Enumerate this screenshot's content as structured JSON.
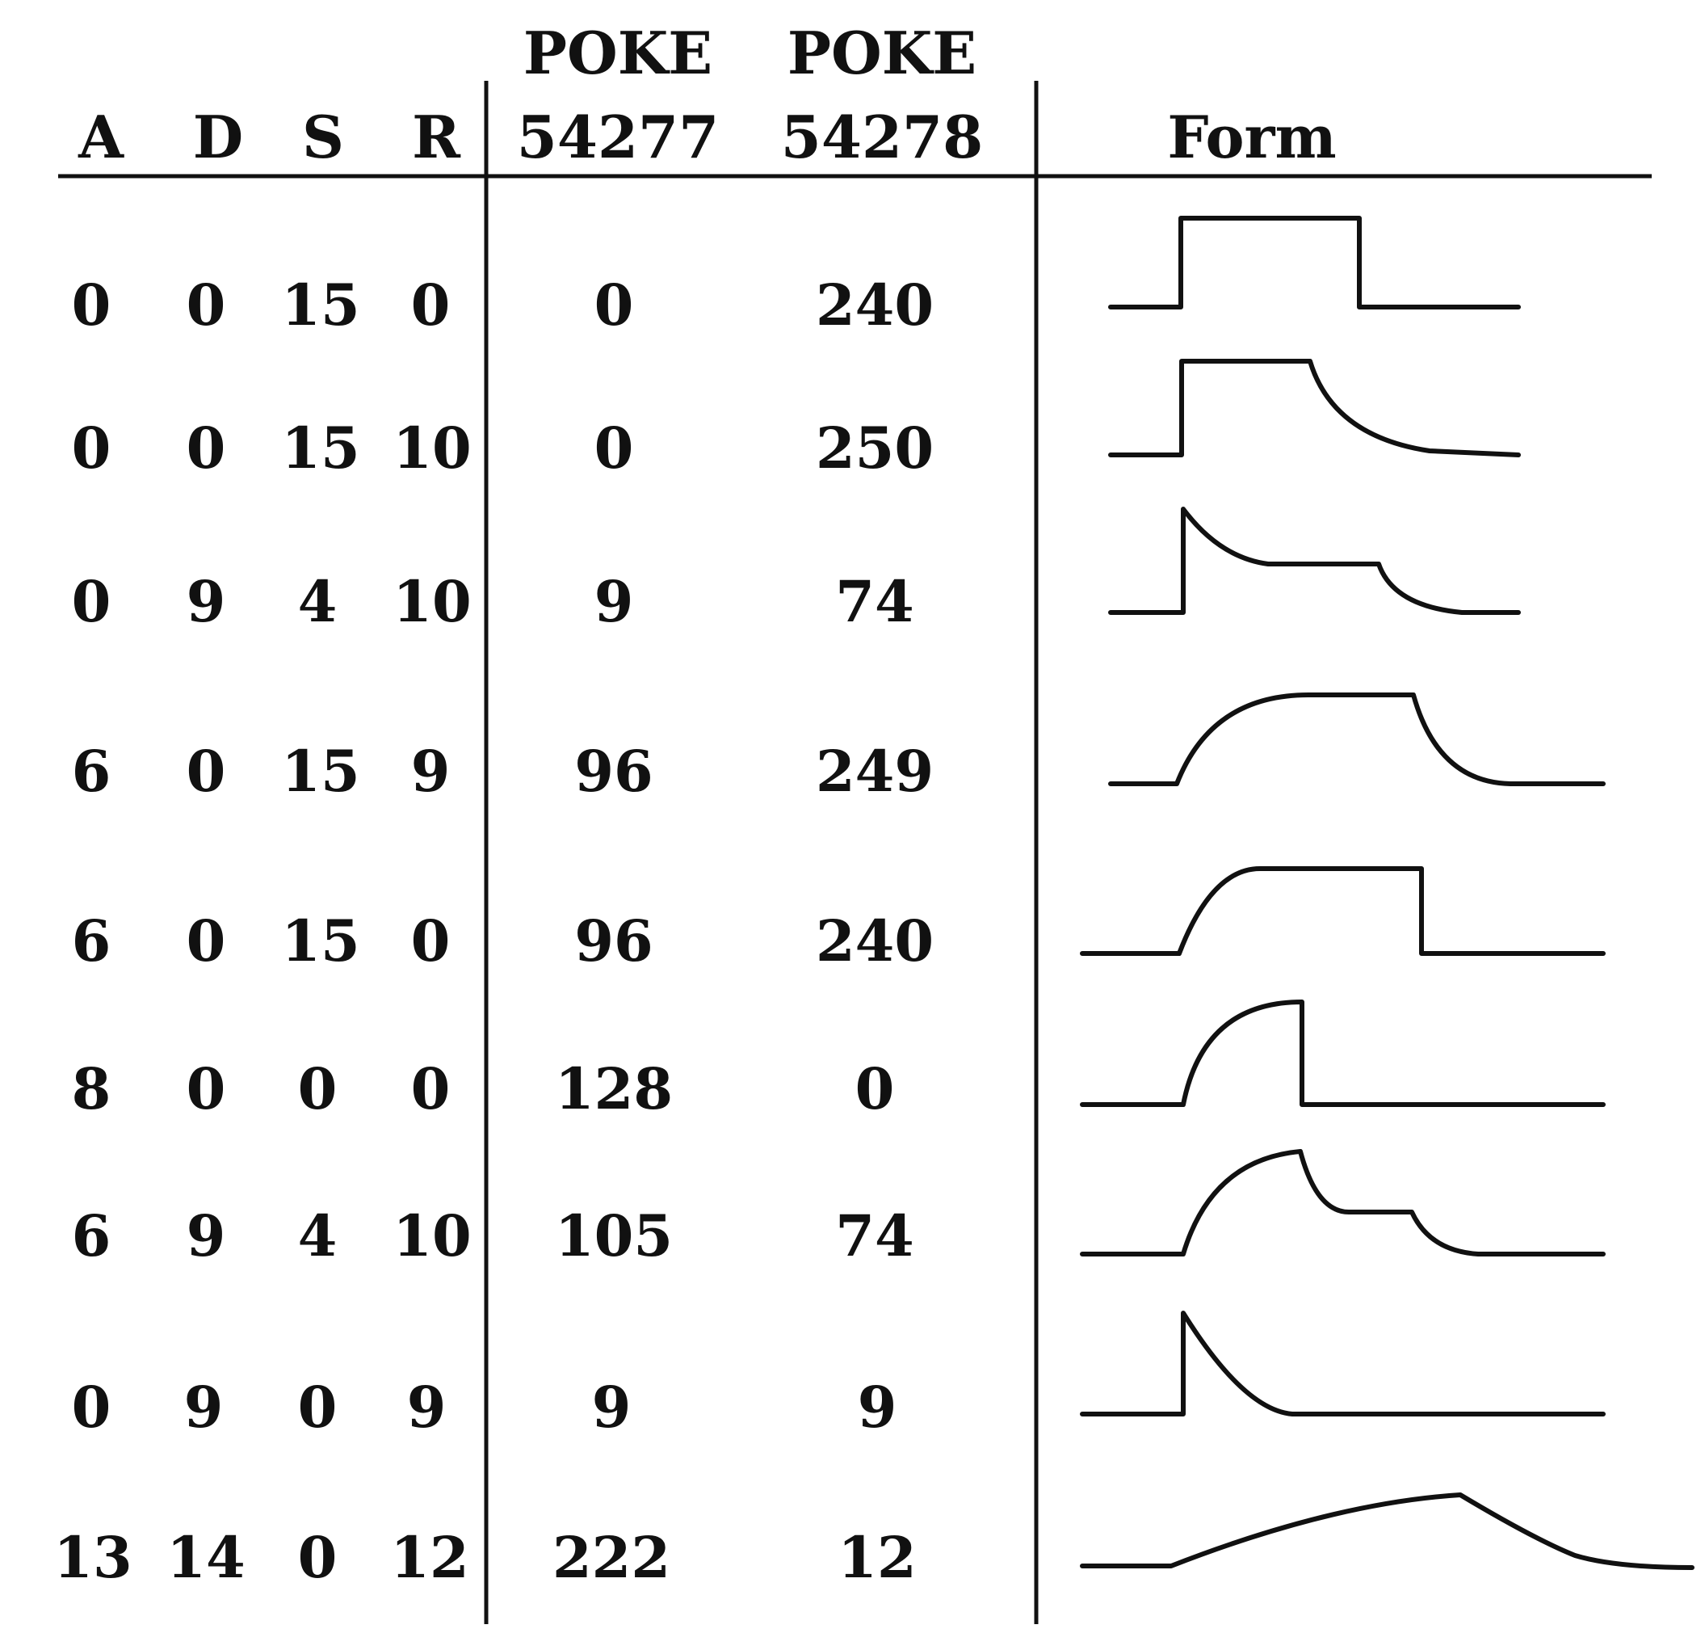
{
  "header": {
    "a": "A",
    "d": "D",
    "s": "S",
    "r": "R",
    "poke1_line1": "POKE",
    "poke1_line2": "54277",
    "poke2_line1": "POKE",
    "poke2_line2": "54278",
    "form": "Form"
  },
  "rows": [
    {
      "a": "0",
      "d": "0",
      "s": "15",
      "r": "0",
      "poke1": "0",
      "poke2": "240",
      "form_icon": "gate-square-wave-icon"
    },
    {
      "a": "0",
      "d": "0",
      "s": "15",
      "r": "10",
      "poke1": "0",
      "poke2": "250",
      "form_icon": "gate-release-decay-icon"
    },
    {
      "a": "0",
      "d": "9",
      "s": "4",
      "r": "10",
      "poke1": "9",
      "poke2": "74",
      "form_icon": "decay-sustain-release-icon"
    },
    {
      "a": "6",
      "d": "0",
      "s": "15",
      "r": "9",
      "poke1": "96",
      "poke2": "249",
      "form_icon": "attack-sustain-release-icon"
    },
    {
      "a": "6",
      "d": "0",
      "s": "15",
      "r": "0",
      "poke1": "96",
      "poke2": "240",
      "form_icon": "attack-sustain-cut-icon"
    },
    {
      "a": "8",
      "d": "0",
      "s": "0",
      "r": "0",
      "poke1": "128",
      "poke2": "0",
      "form_icon": "attack-cut-icon"
    },
    {
      "a": "6",
      "d": "9",
      "s": "4",
      "r": "10",
      "poke1": "105",
      "poke2": "74",
      "form_icon": "full-adsr-icon"
    },
    {
      "a": "0",
      "d": "9",
      "s": "0",
      "r": "9",
      "poke1": "9",
      "poke2": "9",
      "form_icon": "pluck-decay-icon"
    },
    {
      "a": "13",
      "d": "14",
      "s": "0",
      "r": "12",
      "poke1": "222",
      "poke2": "12",
      "form_icon": "slow-swell-icon"
    }
  ]
}
